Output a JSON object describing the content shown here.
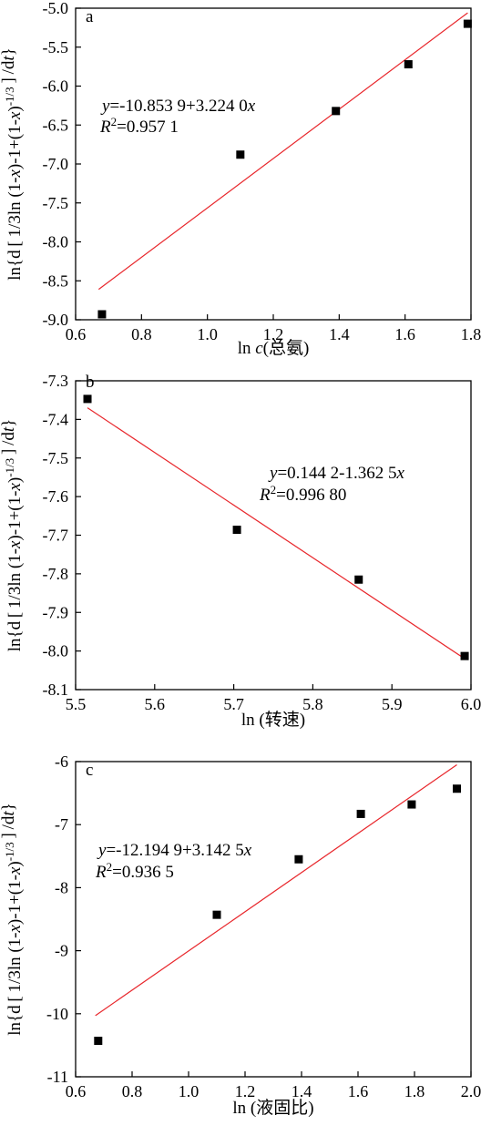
{
  "chart_data": [
    {
      "type": "scatter",
      "panel_label": "a",
      "xlabel": "ln c(总氨)",
      "ylabel": "ln{d [1/3ln (1-x)-1+(1-x)-1/3]/dt}",
      "xlim": [
        0.6,
        1.8
      ],
      "ylim": [
        -9.0,
        -5.0
      ],
      "xticks": [
        "0.6",
        "0.8",
        "1.0",
        "1.2",
        "1.4",
        "1.6",
        "1.8"
      ],
      "yticks": [
        "-5.0",
        "-5.5",
        "-6.0",
        "-6.5",
        "-7.0",
        "-7.5",
        "-8.0",
        "-8.5",
        "-9.0"
      ],
      "points": [
        {
          "x": 0.68,
          "y": -8.93
        },
        {
          "x": 1.1,
          "y": -6.88
        },
        {
          "x": 1.39,
          "y": -6.32
        },
        {
          "x": 1.61,
          "y": -5.72
        },
        {
          "x": 1.79,
          "y": -5.2
        }
      ],
      "fit": {
        "x0": 0.67,
        "x1": 1.79,
        "y0": -8.61,
        "y1": -5.06,
        "color": "#e8262b"
      },
      "equation": "y=-10.853 9+3.224 0x",
      "r2": "R2=0.957 1"
    },
    {
      "type": "scatter",
      "panel_label": "b",
      "xlabel": "ln (转速)",
      "ylabel": "ln{d [1/3ln (1-x)-1+(1-x)-1/3]/dt}",
      "xlim": [
        5.5,
        6.0
      ],
      "ylim": [
        -8.1,
        -7.3
      ],
      "xticks": [
        "5.5",
        "5.6",
        "5.7",
        "5.8",
        "5.9",
        "6.0"
      ],
      "yticks": [
        "-7.3",
        "-7.4",
        "-7.5",
        "-7.6",
        "-7.7",
        "-7.8",
        "-7.9",
        "-8.0",
        "-8.1"
      ],
      "points": [
        {
          "x": 5.515,
          "y": -7.347
        },
        {
          "x": 5.704,
          "y": -7.686
        },
        {
          "x": 5.858,
          "y": -7.815
        },
        {
          "x": 5.992,
          "y": -8.013
        }
      ],
      "fit": {
        "x0": 5.515,
        "x1": 5.992,
        "y0": -7.37,
        "y1": -8.02,
        "color": "#e8262b"
      },
      "equation": "y=0.144 2-1.362 5x",
      "r2": "R2=0.996 80"
    },
    {
      "type": "scatter",
      "panel_label": "c",
      "xlabel": "ln (液固比)",
      "ylabel": "ln{d [1/3ln (1-x)-1+(1-x)-1/3]/dt}",
      "xlim": [
        0.6,
        2.0
      ],
      "ylim": [
        -11,
        -6
      ],
      "xticks": [
        "0.6",
        "0.8",
        "1.0",
        "1.2",
        "1.4",
        "1.6",
        "1.8",
        "2.0"
      ],
      "yticks": [
        "-6",
        "-7",
        "-8",
        "-9",
        "-10",
        "-11"
      ],
      "points": [
        {
          "x": 0.68,
          "y": -10.43
        },
        {
          "x": 1.1,
          "y": -8.43
        },
        {
          "x": 1.39,
          "y": -7.55
        },
        {
          "x": 1.61,
          "y": -6.83
        },
        {
          "x": 1.79,
          "y": -6.68
        },
        {
          "x": 1.95,
          "y": -6.43
        }
      ],
      "fit": {
        "x0": 0.67,
        "x1": 1.95,
        "y0": -10.03,
        "y1": -6.05,
        "color": "#e8262b"
      },
      "equation": "y=-12.194 9+3.142 5x",
      "r2": "R2=0.936 5"
    }
  ]
}
